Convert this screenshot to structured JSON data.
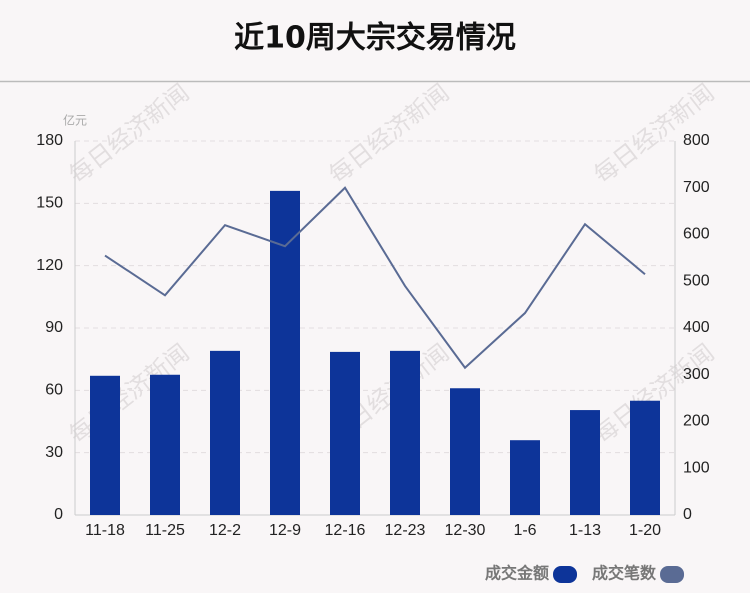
{
  "chart_data": {
    "type": "bar",
    "title": "近10周大宗交易情况",
    "y_unit": "亿元",
    "watermark": "每日经济新闻",
    "categories": [
      "11-18",
      "11-25",
      "12-2",
      "12-9",
      "12-16",
      "12-23",
      "12-30",
      "1-6",
      "1-13",
      "1-20"
    ],
    "series": [
      {
        "name": "成交金额",
        "type": "bar",
        "color": "#0d3499",
        "values": [
          67,
          67.5,
          79,
          156,
          78.5,
          79,
          61,
          36,
          50.5,
          55
        ]
      },
      {
        "name": "成交笔数",
        "type": "line",
        "axis": "y2",
        "color": "#5a6b94",
        "values": [
          555,
          470,
          620,
          575,
          700,
          490,
          315,
          432,
          622,
          515
        ]
      }
    ],
    "ylim": [
      0,
      180
    ],
    "yticks": [
      0,
      30,
      60,
      90,
      120,
      150,
      180
    ],
    "y2lim": [
      0,
      800
    ],
    "y2ticks": [
      0,
      100,
      200,
      300,
      400,
      500,
      600,
      700,
      800
    ],
    "grid": true
  }
}
